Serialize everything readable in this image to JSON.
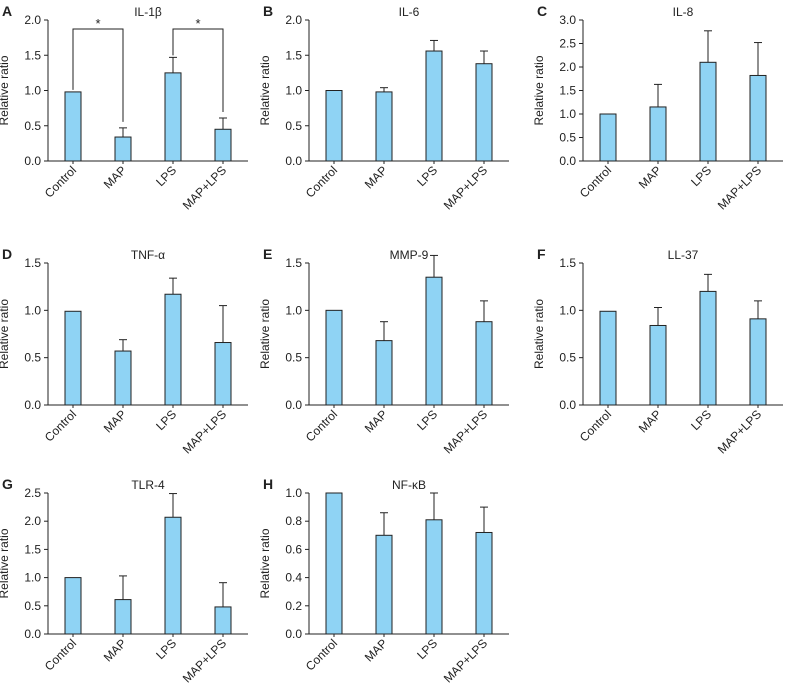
{
  "figure": {
    "categories": [
      "Control",
      "MAP",
      "LPS",
      "MAP+LPS"
    ],
    "ylabel": "Relative ratio",
    "bar_color": "#8fd3f4",
    "edge_color": "#222222"
  },
  "chart_data": [
    {
      "type": "bar",
      "letter": "A",
      "title": "IL-1β",
      "ylabel": "Relative ratio",
      "categories": [
        "Control",
        "MAP",
        "LPS",
        "MAP+LPS"
      ],
      "values": [
        0.98,
        0.34,
        1.25,
        0.45
      ],
      "errors": [
        0.0,
        0.13,
        0.22,
        0.16
      ],
      "ylim": [
        0,
        2.0
      ],
      "yticks": [
        "0.0",
        "0.5",
        "1.0",
        "1.5",
        "2.0"
      ],
      "significance": [
        {
          "from": 0,
          "to": 1,
          "label": "*"
        },
        {
          "from": 2,
          "to": 3,
          "label": "*"
        }
      ]
    },
    {
      "type": "bar",
      "letter": "B",
      "title": "IL-6",
      "ylabel": "Relative ratio",
      "categories": [
        "Control",
        "MAP",
        "LPS",
        "MAP+LPS"
      ],
      "values": [
        1.0,
        0.98,
        1.56,
        1.38
      ],
      "errors": [
        0.0,
        0.06,
        0.15,
        0.18
      ],
      "ylim": [
        0,
        2.0
      ],
      "yticks": [
        "0.0",
        "0.5",
        "1.0",
        "1.5",
        "2.0"
      ]
    },
    {
      "type": "bar",
      "letter": "C",
      "title": "IL-8",
      "ylabel": "Relative ratio",
      "categories": [
        "Control",
        "MAP",
        "LPS",
        "MAP+LPS"
      ],
      "values": [
        1.0,
        1.15,
        2.1,
        1.82
      ],
      "errors": [
        0.0,
        0.48,
        0.67,
        0.7
      ],
      "ylim": [
        0,
        3.0
      ],
      "yticks": [
        "0.0",
        "0.5",
        "1.0",
        "1.5",
        "2.0",
        "2.5",
        "3.0"
      ]
    },
    {
      "type": "bar",
      "letter": "D",
      "title": "TNF-α",
      "ylabel": "Relative ratio",
      "categories": [
        "Control",
        "MAP",
        "LPS",
        "MAP+LPS"
      ],
      "values": [
        0.99,
        0.57,
        1.17,
        0.66
      ],
      "errors": [
        0.0,
        0.12,
        0.17,
        0.39
      ],
      "ylim": [
        0,
        1.5
      ],
      "yticks": [
        "0.0",
        "0.5",
        "1.0",
        "1.5"
      ]
    },
    {
      "type": "bar",
      "letter": "E",
      "title": "MMP-9",
      "ylabel": "Relative ratio",
      "categories": [
        "Control",
        "MAP",
        "LPS",
        "MAP+LPS"
      ],
      "values": [
        1.0,
        0.68,
        1.35,
        0.88
      ],
      "errors": [
        0.0,
        0.2,
        0.23,
        0.22
      ],
      "ylim": [
        0,
        1.5
      ],
      "yticks": [
        "0.0",
        "0.5",
        "1.0",
        "1.5"
      ]
    },
    {
      "type": "bar",
      "letter": "F",
      "title": "LL-37",
      "ylabel": "Relative ratio",
      "categories": [
        "Control",
        "MAP",
        "LPS",
        "MAP+LPS"
      ],
      "values": [
        0.99,
        0.84,
        1.2,
        0.91
      ],
      "errors": [
        0.0,
        0.19,
        0.18,
        0.19
      ],
      "ylim": [
        0,
        1.5
      ],
      "yticks": [
        "0.0",
        "0.5",
        "1.0",
        "1.5"
      ]
    },
    {
      "type": "bar",
      "letter": "G",
      "title": "TLR-4",
      "ylabel": "Relative ratio",
      "categories": [
        "Control",
        "MAP",
        "LPS",
        "MAP+LPS"
      ],
      "values": [
        1.0,
        0.61,
        2.07,
        0.48
      ],
      "errors": [
        0.0,
        0.42,
        0.42,
        0.43
      ],
      "ylim": [
        0,
        2.5
      ],
      "yticks": [
        "0.0",
        "0.5",
        "1.0",
        "1.5",
        "2.0",
        "2.5"
      ]
    },
    {
      "type": "bar",
      "letter": "H",
      "title": "NF-κB",
      "ylabel": "Relative ratio",
      "categories": [
        "Control",
        "MAP",
        "LPS",
        "MAP+LPS"
      ],
      "values": [
        1.0,
        0.7,
        0.81,
        0.72
      ],
      "errors": [
        0.0,
        0.16,
        0.19,
        0.18
      ],
      "ylim": [
        0,
        1.0
      ],
      "yticks": [
        "0.0",
        "0.2",
        "0.4",
        "0.6",
        "0.8",
        "1.0"
      ]
    }
  ]
}
